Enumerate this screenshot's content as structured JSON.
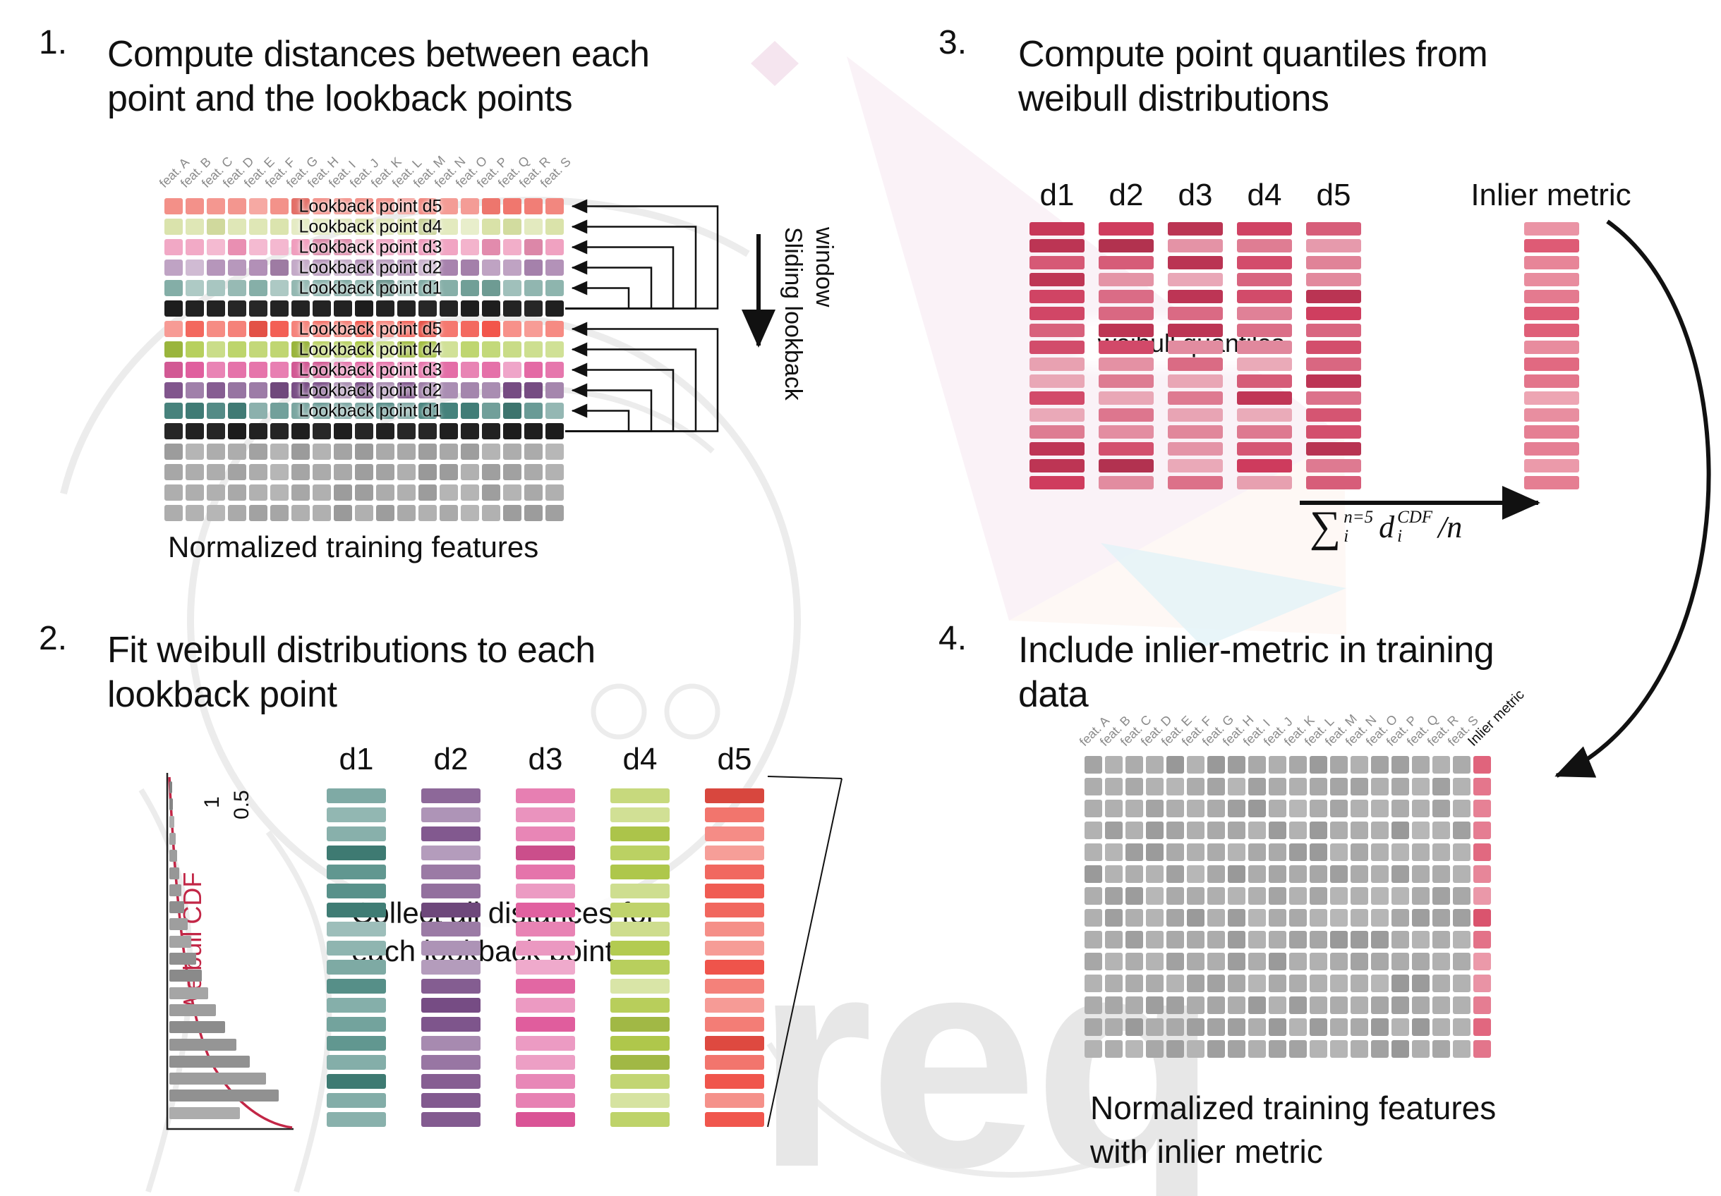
{
  "watermark": {
    "text": "req"
  },
  "palette": {
    "group1": {
      "d5": "#f0776e",
      "d4": "#d6e0a2",
      "d3": "#ee92b6",
      "d2": "#aa85b0",
      "d1": "#75a49c"
    },
    "group2": {
      "d5": "#f2564b",
      "d4": "#abc944",
      "d3": "#e2609f",
      "d2": "#7c5089",
      "d1": "#43807a"
    },
    "black_row": "#1c1c1c",
    "gray_cell": "#a9a9a9",
    "step2_columns": {
      "d1": "#43837b",
      "d2": "#7a4f88",
      "d3": "#df5699",
      "d4": "#b1ca4c",
      "d5": "#ef4f45"
    },
    "quantile_red": "#ce3a5c",
    "inlier_red": "#dd5570",
    "cdf_curve_red": "#c22646"
  },
  "step1": {
    "number": "1.",
    "title_line1": "Compute distances between each",
    "title_line2": "point and the lookback points",
    "features": [
      "feat. A",
      "feat. B",
      "feat. C",
      "feat. D",
      "feat. E",
      "feat. F",
      "feat. G",
      "feat. H",
      "feat. I",
      "feat. J",
      "feat. K",
      "feat. L",
      "feat. M",
      "feat. N",
      "feat. O",
      "feat. P",
      "feat. Q",
      "feat. R",
      "feat. S"
    ],
    "rows": [
      "d5",
      "d4",
      "d3",
      "d2",
      "d1",
      "black",
      "d5",
      "d4",
      "d3",
      "d2",
      "d1",
      "black",
      "gray",
      "gray",
      "gray",
      "gray"
    ],
    "lookback_labels": [
      "Lookback point d5",
      "Lookback point d4",
      "Lookback point d3",
      "Lookback point d2",
      "Lookback point d1"
    ],
    "sliding_label_line1": "Sliding lookback",
    "sliding_label_line2": "window",
    "caption": "Normalized training features"
  },
  "step2": {
    "number": "2.",
    "title_line1": "Fit weibull distributions to each",
    "title_line2": "lookback point",
    "column_headers": [
      "d1",
      "d2",
      "d3",
      "d4",
      "d5"
    ],
    "bars_per_column": 18,
    "overlay_line1": "Collect all distances for",
    "overlay_line2": "each lookback point",
    "cdf_plot": {
      "ylabel": "Weibull CDF",
      "ticks": [
        "1",
        "0.5"
      ],
      "bar_lengths": [
        4,
        5,
        7,
        9,
        11,
        14,
        17,
        21,
        26,
        31,
        38,
        46,
        55,
        66,
        79,
        95,
        114,
        137,
        155,
        100
      ]
    }
  },
  "step3": {
    "number": "3.",
    "title_line1": "Compute point quantiles from",
    "title_line2": "weibull distributions",
    "column_headers": [
      "d1",
      "d2",
      "d3",
      "d4",
      "d5"
    ],
    "bars_per_column": 16,
    "overlay_text": "weibull quantiles",
    "inlier_header": "Inlier metric",
    "formula": {
      "sum": "∑",
      "sum_sup": "n=5",
      "sum_sub": "i",
      "term": "d",
      "term_sup": "CDF",
      "term_sub": "i",
      "tail": "/n"
    }
  },
  "step4": {
    "number": "4.",
    "title_line1": "Include inlier-metric in training",
    "title_line2": "data",
    "features": [
      "feat. A",
      "feat. B",
      "feat. C",
      "feat. D",
      "feat. E",
      "feat. F",
      "feat. G",
      "feat. H",
      "feat. I",
      "feat. J",
      "feat. K",
      "feat. L",
      "feat. M",
      "feat. N",
      "feat. O",
      "feat. P",
      "feat. Q",
      "feat. R",
      "feat. S"
    ],
    "inlier_label": "Inlier metric",
    "grid_rows": 14,
    "caption_line1": "Normalized training features",
    "caption_line2": "with inlier metric"
  }
}
